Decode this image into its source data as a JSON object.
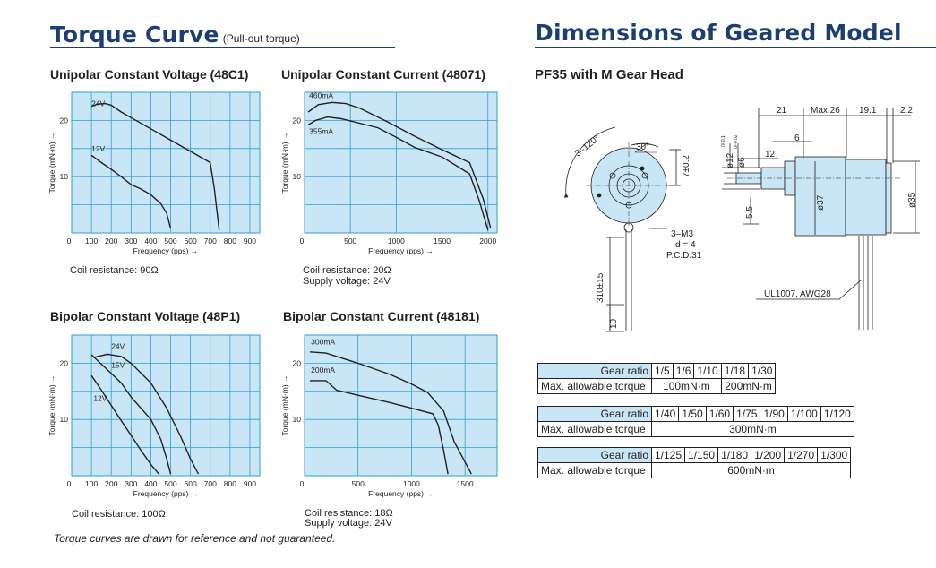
{
  "headings": {
    "torque": "Torque Curve",
    "torque_sub": "(Pull-out torque)",
    "dims": "Dimensions of Geared Model",
    "model": "PF35 with M Gear Head"
  },
  "charts_text": {
    "y_label": "Torque (mN·m) →",
    "x_label": "Frequency (pps) →"
  },
  "chart_data": [
    {
      "id": "c1",
      "type": "line",
      "title": "Unipolar Constant Voltage (48C1)",
      "xlabel": "Frequency (pps) →",
      "ylabel": "Torque (mN·m) →",
      "xlim": [
        0,
        950
      ],
      "ylim": [
        0,
        25
      ],
      "xticks": [
        100,
        200,
        300,
        400,
        500,
        600,
        700,
        800,
        900
      ],
      "yticks": [
        10,
        20
      ],
      "grid": true,
      "notes": [
        "Coil resistance: 90Ω"
      ],
      "series": [
        {
          "name": "24V",
          "label_at": [
            100,
            22.5
          ],
          "points": [
            [
              100,
              22.5
            ],
            [
              130,
              22.9
            ],
            [
              170,
              23.0
            ],
            [
              200,
              22.7
            ],
            [
              250,
              21.5
            ],
            [
              300,
              20.5
            ],
            [
              400,
              18.5
            ],
            [
              500,
              16.5
            ],
            [
              600,
              14.5
            ],
            [
              700,
              12.5
            ],
            [
              720,
              8.0
            ],
            [
              745,
              0.5
            ]
          ]
        },
        {
          "name": "12V",
          "label_at": [
            100,
            14.5
          ],
          "points": [
            [
              100,
              13.8
            ],
            [
              150,
              12.5
            ],
            [
              200,
              11.3
            ],
            [
              250,
              10.0
            ],
            [
              300,
              8.6
            ],
            [
              350,
              7.8
            ],
            [
              400,
              6.8
            ],
            [
              450,
              5.2
            ],
            [
              480,
              3.5
            ],
            [
              500,
              0.8
            ]
          ]
        }
      ]
    },
    {
      "id": "c2",
      "type": "line",
      "title": "Unipolar Constant Current (48071)",
      "xlabel": "Frequency (pps) →",
      "ylabel": "Torque (mN·m) →",
      "xlim": [
        0,
        2100
      ],
      "ylim": [
        0,
        25
      ],
      "xticks": [
        500,
        1000,
        1500,
        2000
      ],
      "yticks": [
        10,
        20
      ],
      "grid": true,
      "notes": [
        "Coil resistance: 20Ω",
        "Supply voltage: 24V"
      ],
      "series": [
        {
          "name": "460mA",
          "label_at": [
            50,
            24.0
          ],
          "points": [
            [
              40,
              21.5
            ],
            [
              150,
              22.8
            ],
            [
              300,
              23.2
            ],
            [
              450,
              23.0
            ],
            [
              600,
              22.2
            ],
            [
              900,
              19.8
            ],
            [
              1200,
              17.2
            ],
            [
              1500,
              14.8
            ],
            [
              1800,
              12.5
            ],
            [
              1950,
              6.0
            ],
            [
              2030,
              0.8
            ]
          ]
        },
        {
          "name": "355mA",
          "label_at": [
            50,
            17.6
          ],
          "points": [
            [
              40,
              19.2
            ],
            [
              120,
              20.0
            ],
            [
              250,
              20.6
            ],
            [
              400,
              20.3
            ],
            [
              600,
              19.5
            ],
            [
              800,
              18.7
            ],
            [
              1000,
              17.0
            ],
            [
              1200,
              15.2
            ],
            [
              1500,
              13.5
            ],
            [
              1800,
              10.5
            ],
            [
              1900,
              6.0
            ],
            [
              2000,
              0.5
            ]
          ]
        }
      ]
    },
    {
      "id": "c3",
      "type": "line",
      "title": "Bipolar Constant Voltage (48P1)",
      "xlabel": "Frequency (pps) →",
      "ylabel": "Torque (mN·m) →",
      "xlim": [
        0,
        950
      ],
      "ylim": [
        0,
        25
      ],
      "xticks": [
        100,
        200,
        300,
        400,
        500,
        600,
        700,
        800,
        900
      ],
      "yticks": [
        10,
        20
      ],
      "grid": true,
      "notes": [
        "Coil resistance: 100Ω"
      ],
      "series": [
        {
          "name": "24V",
          "label_at": [
            200,
            22.5
          ],
          "points": [
            [
              110,
              21.0
            ],
            [
              180,
              21.6
            ],
            [
              250,
              21.2
            ],
            [
              300,
              20.0
            ],
            [
              400,
              16.5
            ],
            [
              480,
              12.0
            ],
            [
              550,
              7.0
            ],
            [
              600,
              3.0
            ],
            [
              640,
              0.3
            ]
          ]
        },
        {
          "name": "15V",
          "label_at": [
            200,
            19.2
          ],
          "points": [
            [
              100,
              21.5
            ],
            [
              160,
              19.5
            ],
            [
              250,
              16.5
            ],
            [
              300,
              14.0
            ],
            [
              400,
              10.0
            ],
            [
              450,
              6.5
            ],
            [
              480,
              3.0
            ],
            [
              500,
              0.3
            ]
          ]
        },
        {
          "name": "12V",
          "label_at": [
            110,
            13.3
          ],
          "points": [
            [
              100,
              17.8
            ],
            [
              150,
              15.2
            ],
            [
              200,
              12.5
            ],
            [
              250,
              9.8
            ],
            [
              300,
              7.2
            ],
            [
              350,
              4.5
            ],
            [
              400,
              2.0
            ],
            [
              440,
              0.3
            ]
          ]
        }
      ]
    },
    {
      "id": "c4",
      "type": "line",
      "title": "Bipolar Constant Current (48181)",
      "xlabel": "Frequency (pps) →",
      "ylabel": "Torque (mN·m) →",
      "xlim": [
        0,
        1800
      ],
      "ylim": [
        0,
        25
      ],
      "xticks": [
        500,
        1000,
        1500
      ],
      "yticks": [
        10,
        20
      ],
      "grid": true,
      "notes": [
        "Coil resistance: 18Ω",
        "Supply voltage: 24V"
      ],
      "series": [
        {
          "name": "300mA",
          "label_at": [
            60,
            23.3
          ],
          "points": [
            [
              50,
              22.0
            ],
            [
              200,
              21.8
            ],
            [
              500,
              20.0
            ],
            [
              800,
              18.0
            ],
            [
              1000,
              16.3
            ],
            [
              1150,
              14.8
            ],
            [
              1300,
              11.5
            ],
            [
              1400,
              6.0
            ],
            [
              1560,
              0.3
            ]
          ]
        },
        {
          "name": "200mA",
          "label_at": [
            60,
            18.3
          ],
          "points": [
            [
              50,
              16.9
            ],
            [
              200,
              16.9
            ],
            [
              300,
              15.2
            ],
            [
              500,
              14.3
            ],
            [
              800,
              13.0
            ],
            [
              1000,
              12.0
            ],
            [
              1200,
              11.0
            ],
            [
              1250,
              9.0
            ],
            [
              1300,
              4.5
            ],
            [
              1340,
              0.3
            ]
          ]
        }
      ]
    }
  ],
  "drawing": {
    "angle_3_120": "3–120°",
    "angle_30": "30°",
    "dim_7": "7±0.2",
    "holes_1": "3–M3",
    "holes_2": "d = 4",
    "holes_3": "P.C.D.31",
    "lead_len": "310±15",
    "lead_strip": "10",
    "dim_21": "21",
    "dim_max26": "Max.26",
    "dim_19_1": "19.1",
    "dim_2_2": "2.2",
    "dim_6": "6",
    "dim_12": "12",
    "dia_12": "ø12",
    "dia_12_tol": "0/-0.1",
    "dia_6": "ø6",
    "dia_6_tol": "0/-0.02",
    "dim_5_5": "5.5",
    "dia_37": "ø37",
    "dia_35": "ø35",
    "wire": "UL1007, AWG28"
  },
  "gear_tables": [
    {
      "header": "Gear ratio",
      "ratios": [
        "1/5",
        "1/6",
        "1/10",
        "1/18",
        "1/30"
      ],
      "torque_label": "Max. allowable torque",
      "torques": [
        {
          "value": "100mN·m",
          "span": 3
        },
        {
          "value": "200mN·m",
          "span": 2
        }
      ]
    },
    {
      "header": "Gear ratio",
      "ratios": [
        "1/40",
        "1/50",
        "1/60",
        "1/75",
        "1/90",
        "1/100",
        "1/120"
      ],
      "torque_label": "Max. allowable torque",
      "torques": [
        {
          "value": "300mN·m",
          "span": 7
        }
      ]
    },
    {
      "header": "Gear ratio",
      "ratios": [
        "1/125",
        "1/150",
        "1/180",
        "1/200",
        "1/270",
        "1/300"
      ],
      "torque_label": "Max. allowable torque",
      "torques": [
        {
          "value": "600mN·m",
          "span": 6
        }
      ]
    }
  ],
  "footnote": "Torque curves are drawn for reference and not guaranteed.",
  "colors": {
    "heading": "#1c3f73",
    "chart_fill": "#c9e6f6",
    "grid": "#2e9ed6",
    "ink": "#231f20"
  }
}
